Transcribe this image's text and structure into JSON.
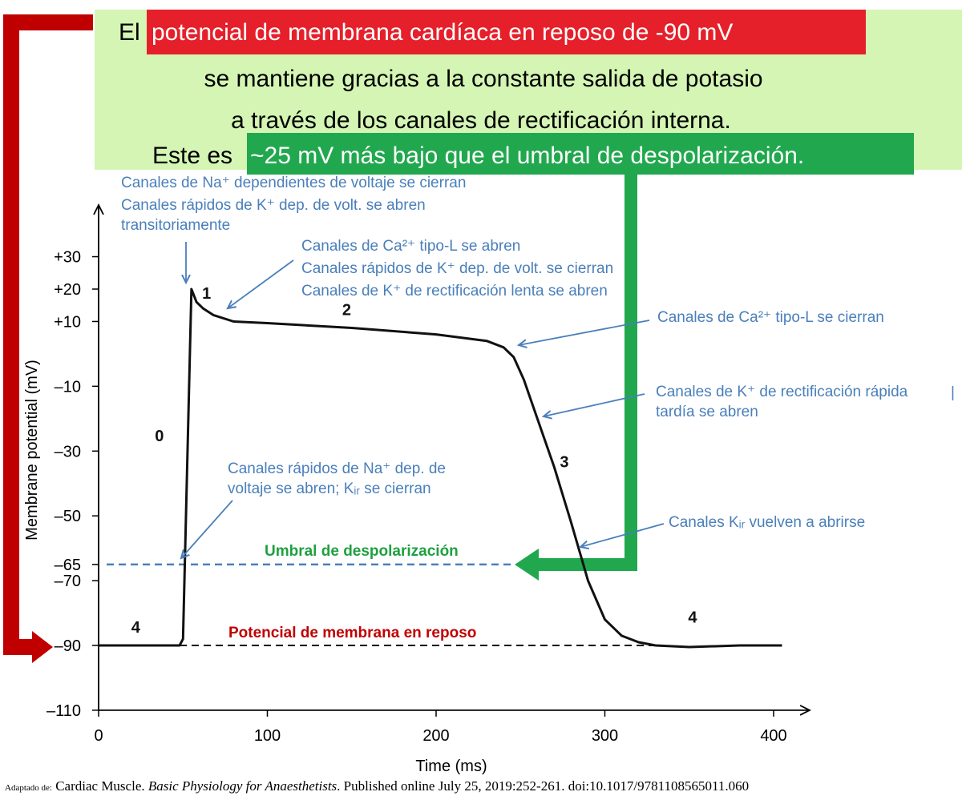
{
  "header": {
    "line1_pre": "El",
    "line1_highlight": "potencial de membrana cardíaca en reposo de -90 mV",
    "line2": "se mantiene gracias a la constante salida de potasio",
    "line3": "a través de los canales de rectificación interna.",
    "line4_pre": "Este es",
    "line4_highlight": "~25 mV más bajo que el umbral de despolarización."
  },
  "annotations": {
    "phase0_close_1": "Canales de Na⁺ dependientes de voltaje se cierran",
    "phase0_close_2": "Canales rápidos de K⁺ dep. de volt. se abren",
    "phase0_close_3": "transitoriamente",
    "phase1_1": "Canales de Ca²⁺ tipo-L se abren",
    "phase1_2": "Canales rápidos de K⁺ dep. de volt. se cierran",
    "phase1_3": "Canales de K⁺ de rectificación lenta se abren",
    "phase2_end": "Canales de Ca²⁺ tipo-L se cierran",
    "phase3_1": "Canales de K⁺ de rectificación rápida",
    "phase3_2": "tardía se abren",
    "upstroke_1": "Canales rápidos de Na⁺ dep. de",
    "upstroke_2": "voltaje se abren; Kᵢᵣ se cierran",
    "kir_reopen": "Canales Kᵢᵣ vuelven a abrirse",
    "threshold_label": "Umbral de despolarización",
    "resting_label": "Potencial de membrana en reposo"
  },
  "citation": {
    "prefix": "Adaptado de:",
    "source": "Cardiac Muscle.",
    "book": "Basic Physiology for Anaesthetists",
    "rest": ". Published online July 25, 2019:252-261. doi:10.1017/9781108565011.060"
  },
  "colors": {
    "red": "#e5202a",
    "dark_red": "#c00000",
    "green": "#21a84e",
    "light_green": "#d4f5b4",
    "blue": "#4a7fba",
    "threshold_green": "#1fa040"
  },
  "chart_data": {
    "type": "line",
    "title": "",
    "xlabel": "Time (ms)",
    "ylabel": "Membrane potential (mV)",
    "xlim": [
      0,
      420
    ],
    "ylim": [
      -110,
      45
    ],
    "x_ticks": [
      0,
      100,
      200,
      300,
      400
    ],
    "y_ticks": [
      30,
      20,
      10,
      -10,
      -30,
      -50,
      -65,
      -70,
      -90,
      -110
    ],
    "y_tick_labels": [
      "+30",
      "+20",
      "+10",
      "–10",
      "–30",
      "–50",
      "–65",
      "–70",
      "–90",
      "–110"
    ],
    "grid": false,
    "series": [
      {
        "x": [
          0,
          48,
          50,
          55,
          58,
          62,
          68,
          80,
          100,
          150,
          200,
          230,
          240,
          246,
          252,
          260,
          270,
          280,
          290,
          300,
          310,
          320,
          330,
          350,
          380,
          405
        ],
        "y": [
          -90,
          -90,
          -88,
          20,
          16,
          14,
          12,
          10,
          9.5,
          8,
          6,
          4,
          2,
          -1,
          -8,
          -20,
          -35,
          -52,
          -70,
          -82,
          -87,
          -89,
          -90,
          -90.5,
          -90,
          -90
        ]
      }
    ],
    "reference_lines": [
      {
        "label": "Umbral de despolarización",
        "y": -65
      },
      {
        "label": "Potencial de membrana en reposo",
        "y": -90
      }
    ],
    "phase_labels": [
      {
        "text": "0",
        "x": 36,
        "y": -27
      },
      {
        "text": "1",
        "x": 64,
        "y": 17
      },
      {
        "text": "2",
        "x": 147,
        "y": 12
      },
      {
        "text": "3",
        "x": 276,
        "y": -35
      },
      {
        "text": "4",
        "x": 22,
        "y": -86
      },
      {
        "text": "4",
        "x": 352,
        "y": -83
      }
    ]
  }
}
